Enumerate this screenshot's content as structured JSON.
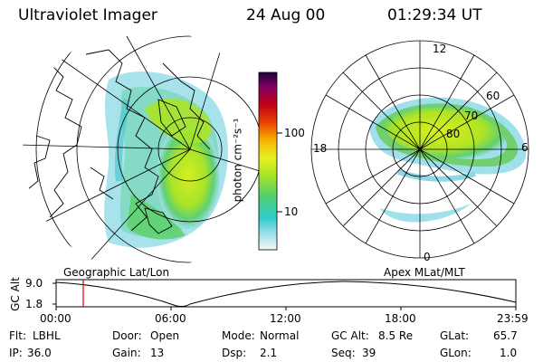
{
  "header": {
    "instrument": "Ultraviolet Imager",
    "date": "24 Aug 00",
    "time": "01:29:34 UT"
  },
  "colorbar": {
    "unit_label": "photon cm⁻²s⁻¹",
    "ticks": [
      "100",
      "10"
    ]
  },
  "geo_panel": {
    "label": "Geographic Lat/Lon"
  },
  "apex_panel": {
    "label": "Apex MLat/MLT",
    "mlt_labels": [
      "12",
      "18",
      "6",
      "0"
    ],
    "mlat_labels": [
      "60",
      "70",
      "80"
    ]
  },
  "altitude_plot": {
    "ylabel": "GC Alt",
    "y_ticks": [
      "9.0",
      "1.8"
    ],
    "x_ticks": [
      "00:00",
      "06:00",
      "12:00",
      "18:00",
      "23:59"
    ],
    "current_time_marker": "01:29"
  },
  "info": {
    "row1": [
      {
        "label": "Flt:",
        "value": "LBHL"
      },
      {
        "label": "Door:",
        "value": "Open"
      },
      {
        "label": "Mode:",
        "value": "Normal"
      },
      {
        "label": "GC Alt:",
        "value": "8.5 Re"
      },
      {
        "label": "GLat:",
        "value": "65.7"
      }
    ],
    "row2": [
      {
        "label": "IP:",
        "value": "36.0"
      },
      {
        "label": "Gain:",
        "value": "13"
      },
      {
        "label": "Dsp:",
        "value": "2.1"
      },
      {
        "label": "Seq:",
        "value": "39"
      },
      {
        "label": "GLon:",
        "value": "1.0"
      }
    ]
  },
  "colors": {
    "colorbar_stops": [
      "#f0f0f0",
      "#7fd6e0",
      "#22c8c8",
      "#60d060",
      "#b8e820",
      "#f0f020",
      "#f0a000",
      "#e04000",
      "#b00010",
      "#800060",
      "#200040"
    ],
    "aurora_core": "#c8ec20",
    "aurora_mid": "#70d860",
    "aurora_edge": "#7fd8e8",
    "marker": "#e00000"
  }
}
